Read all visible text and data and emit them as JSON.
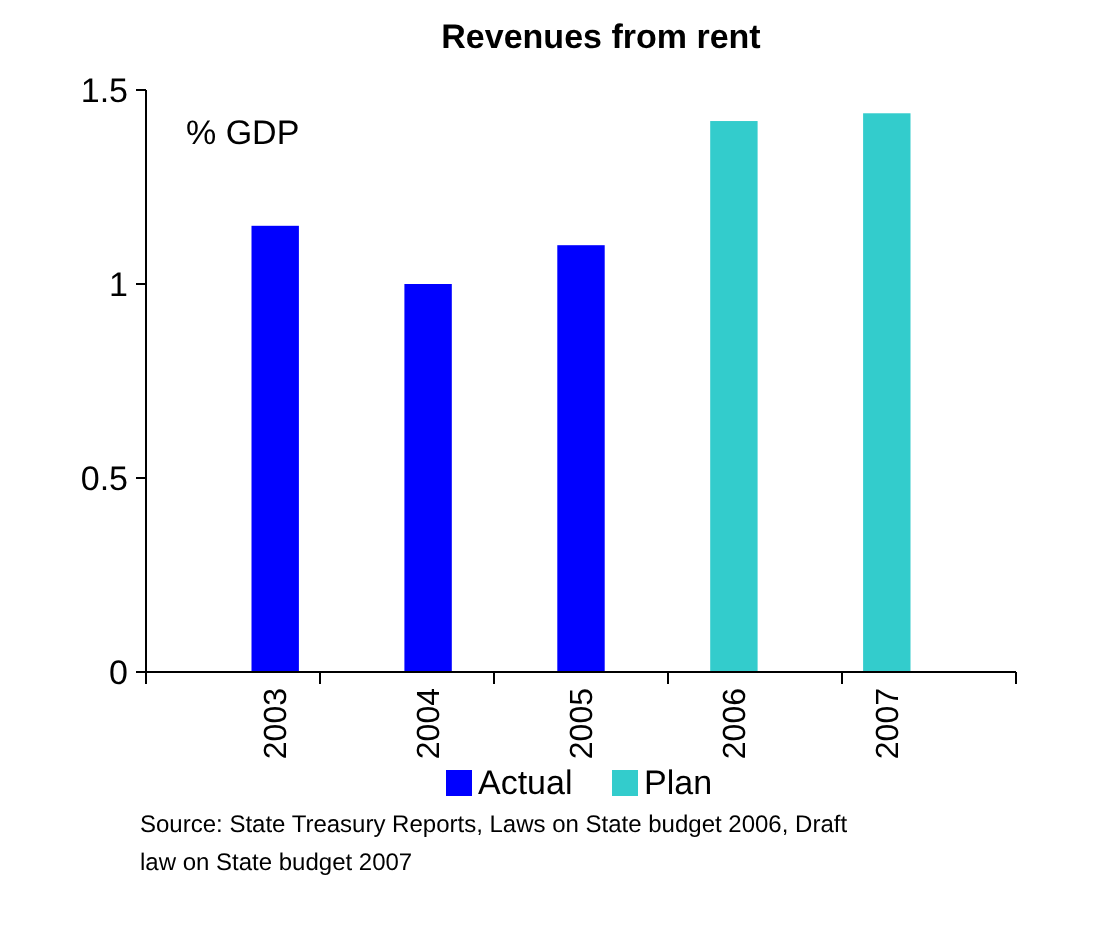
{
  "chart_data": {
    "type": "bar",
    "title": "Revenues from rent",
    "ylabel": "% GDP",
    "categories": [
      "2003",
      "2004",
      "2005",
      "2006",
      "2007"
    ],
    "series": [
      {
        "name": "Actual",
        "color": "#0000ff",
        "values": [
          1.15,
          1.0,
          1.1,
          null,
          null
        ]
      },
      {
        "name": "Plan",
        "color": "#33cccc",
        "values": [
          null,
          null,
          null,
          1.42,
          1.44
        ]
      }
    ],
    "ylim": [
      0,
      1.5
    ],
    "yticks": [
      0,
      0.5,
      1,
      1.5
    ],
    "grid": false,
    "legend": "bottom",
    "annotations": [
      "Source: State Treasury Reports, Laws on State budget 2006, Draft law on State budget 2007"
    ]
  }
}
